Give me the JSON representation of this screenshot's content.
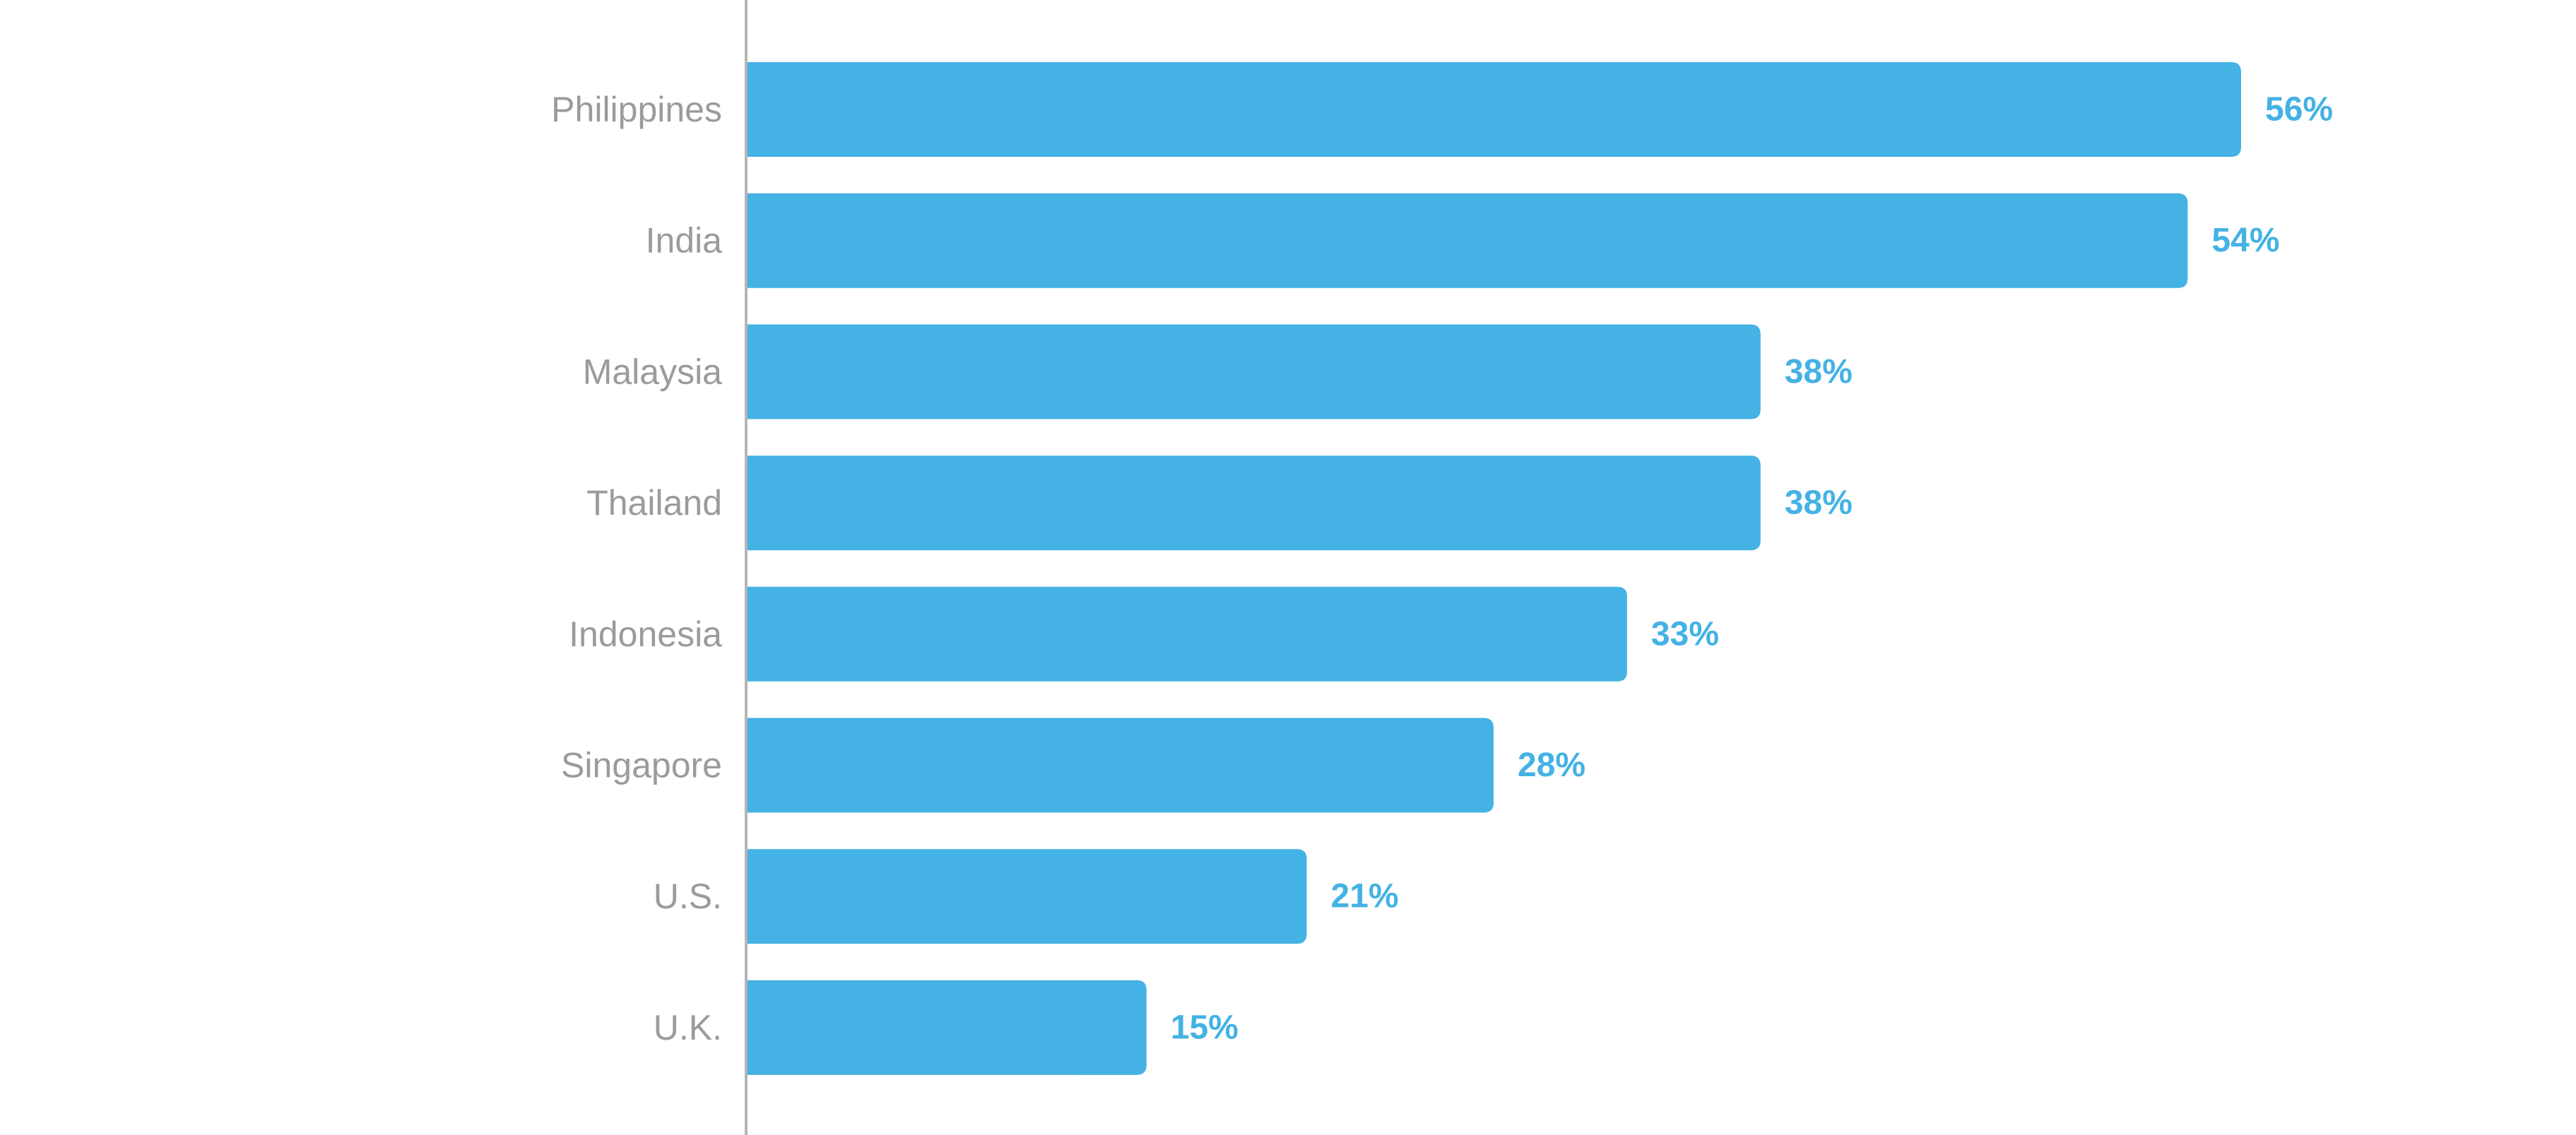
{
  "chart_data": {
    "type": "bar",
    "orientation": "horizontal",
    "categories": [
      "Philippines",
      "India",
      "Malaysia",
      "Thailand",
      "Indonesia",
      "Singapore",
      "U.S.",
      "U.K."
    ],
    "values": [
      56,
      54,
      38,
      38,
      33,
      28,
      21,
      15
    ],
    "value_labels": [
      "56%",
      "54%",
      "38%",
      "38%",
      "33%",
      "28%",
      "21%",
      "15%"
    ],
    "title": "",
    "xlabel": "",
    "ylabel": "",
    "xlim": [
      0,
      56
    ],
    "grid": false,
    "legend": "none"
  },
  "colors": {
    "bar": "#44b2e4",
    "value_label": "#44b2e4",
    "category_label": "#9b9b9b",
    "axis": "#b5b5b5",
    "background": "#ffffff"
  }
}
